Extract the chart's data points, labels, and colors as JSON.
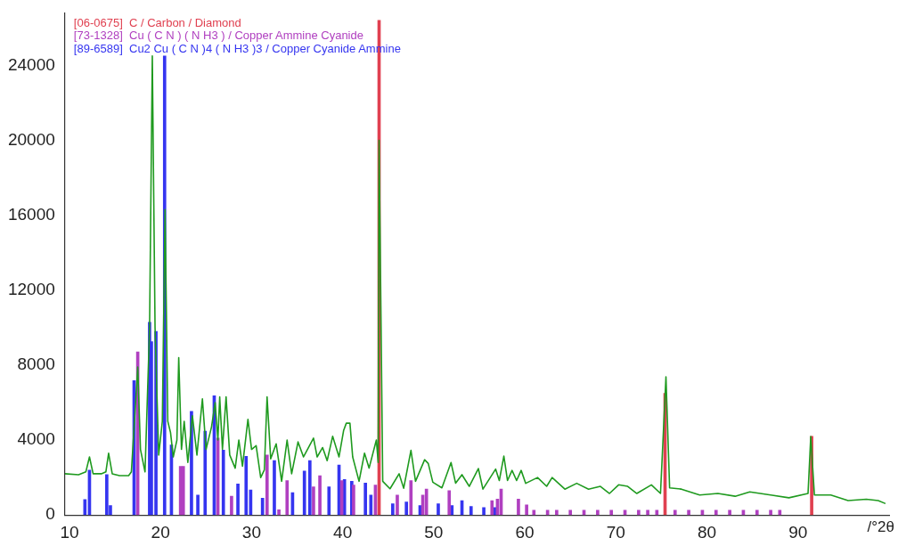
{
  "chart_data": {
    "type": "line",
    "xlabel": "/°2θ",
    "xlim": [
      9.5,
      100
    ],
    "ylim": [
      0,
      26800
    ],
    "xticks": [
      10,
      20,
      30,
      40,
      50,
      60,
      70,
      80,
      90
    ],
    "yticks": [
      0,
      4000,
      8000,
      12000,
      16000,
      20000,
      24000
    ],
    "legend": "top left",
    "marker": "none",
    "line_style": "solid",
    "series": [
      {
        "type": "bar",
        "name": "[06-0675]  C / Carbon / Diamond",
        "color": "#e04050",
        "x": [
          44.0,
          75.4,
          91.5
        ],
        "values": [
          26400,
          6500,
          4200
        ]
      },
      {
        "type": "bar",
        "name": "[73-1328]  Cu ( C N ) ( N H3 ) / Copper Ammine Cyanide",
        "color": "#b040c0",
        "x": [
          17.5,
          22.2,
          22.5,
          26.3,
          27.8,
          31.7,
          33.0,
          33.9,
          36.8,
          37.5,
          39.9,
          41.2,
          43.6,
          46.0,
          47.5,
          48.8,
          49.2,
          51.7,
          56.4,
          57.0,
          57.4,
          59.3,
          60.2,
          61.0,
          62.5,
          63.5,
          65.0,
          66.5,
          68.0,
          69.5,
          71.0,
          72.5,
          73.5,
          74.5,
          76.5,
          78.0,
          79.5,
          81.0,
          82.5,
          84.0,
          85.5,
          87.0,
          88.0
        ],
        "values": [
          8700,
          2600,
          2600,
          4100,
          1000,
          3200,
          280,
          1840,
          1500,
          2100,
          1840,
          1600,
          1600,
          1060,
          1840,
          1060,
          1380,
          1300,
          770,
          850,
          1380,
          850,
          540,
          250,
          250,
          250,
          250,
          250,
          250,
          250,
          250,
          250,
          250,
          250,
          250,
          250,
          250,
          250,
          250,
          250,
          250,
          250,
          250
        ]
      },
      {
        "type": "bar",
        "name": "[89-6589]  Cu2 Cu ( C N )4 ( N H3 )3 / Copper Cyanide Ammine",
        "color": "#3535f0",
        "x": [
          11.7,
          12.2,
          14.1,
          14.5,
          17.1,
          18.8,
          19.0,
          19.5,
          20.45,
          21.2,
          23.4,
          24.1,
          24.9,
          25.9,
          26.9,
          28.5,
          29.4,
          29.9,
          31.2,
          32.5,
          34.5,
          35.8,
          36.4,
          38.5,
          39.6,
          40.2,
          41.0,
          42.5,
          43.1,
          45.5,
          47.0,
          48.5,
          50.5,
          52.0,
          53.1,
          54.1,
          55.5,
          56.7
        ],
        "values": [
          830,
          2400,
          2160,
          500,
          7170,
          10280,
          9250,
          9800,
          24500,
          3740,
          5530,
          1060,
          4470,
          6360,
          3460,
          1660,
          3130,
          1340,
          900,
          2900,
          1200,
          2350,
          2900,
          1500,
          2670,
          1900,
          1800,
          1700,
          1060,
          600,
          700,
          500,
          600,
          500,
          770,
          460,
          400,
          400
        ]
      },
      {
        "color": "#1f9a1f",
        "x": [
          9.5,
          11.0,
          11.8,
          12.2,
          12.6,
          13.5,
          14.0,
          14.3,
          14.7,
          15.5,
          16.5,
          16.8,
          17.2,
          17.5,
          17.8,
          18.3,
          18.8,
          19.1,
          19.4,
          19.8,
          20.2,
          20.5,
          20.8,
          21.1,
          21.4,
          21.8,
          22.0,
          22.3,
          22.6,
          23.0,
          23.5,
          24.0,
          24.6,
          25.0,
          25.6,
          26.0,
          26.3,
          26.5,
          26.8,
          27.2,
          27.6,
          28.2,
          28.6,
          29.0,
          29.6,
          30.0,
          30.5,
          31.0,
          31.4,
          31.7,
          32.1,
          32.7,
          33.3,
          33.9,
          34.4,
          35.1,
          35.7,
          36.8,
          37.2,
          37.8,
          38.3,
          38.9,
          39.6,
          40.1,
          40.4,
          40.8,
          41.1,
          41.8,
          42.4,
          42.9,
          43.7,
          43.9,
          44.0,
          44.4,
          45.2,
          46.2,
          46.7,
          47.5,
          48.0,
          49.0,
          49.4,
          49.9,
          50.9,
          51.9,
          52.4,
          53.1,
          53.9,
          54.9,
          55.4,
          56.8,
          57.2,
          57.7,
          58.1,
          58.6,
          59.1,
          59.6,
          60.1,
          61.4,
          62.4,
          63.0,
          64.4,
          65.7,
          67.0,
          68.3,
          69.3,
          70.3,
          71.3,
          72.3,
          73.9,
          74.9,
          75.5,
          75.9,
          77.2,
          79.2,
          81.2,
          83.1,
          84.7,
          87.0,
          89.0,
          91.1,
          91.4,
          91.8,
          93.6,
          95.5,
          97.5,
          98.8,
          99.6
        ],
        "values": [
          2200,
          2150,
          2300,
          3100,
          2200,
          2200,
          2300,
          3300,
          2200,
          2100,
          2100,
          2300,
          5500,
          7900,
          3500,
          2300,
          10000,
          24500,
          10000,
          3200,
          5000,
          16300,
          5000,
          4400,
          3100,
          4000,
          8400,
          3500,
          5000,
          2800,
          5300,
          3200,
          6200,
          3500,
          4700,
          6000,
          4000,
          6300,
          3500,
          6300,
          3200,
          2500,
          4000,
          2600,
          5100,
          3500,
          3700,
          2000,
          2400,
          6300,
          3000,
          3800,
          1800,
          4000,
          2200,
          3900,
          3100,
          4100,
          3100,
          3600,
          2900,
          4200,
          3100,
          4500,
          4900,
          4900,
          3100,
          1800,
          3300,
          2500,
          4000,
          2800,
          20000,
          1800,
          1400,
          2200,
          1430,
          3450,
          1800,
          2950,
          2750,
          1750,
          1450,
          2800,
          1700,
          2150,
          1530,
          2480,
          1380,
          2450,
          1840,
          3140,
          1840,
          2380,
          1840,
          2380,
          1690,
          2000,
          1530,
          2000,
          1380,
          1690,
          1380,
          1530,
          1150,
          1610,
          1530,
          1150,
          1610,
          1150,
          7370,
          1450,
          1380,
          1070,
          1150,
          1000,
          1230,
          1070,
          920,
          1150,
          4190,
          1070,
          1070,
          770,
          840,
          770,
          610
        ]
      }
    ]
  }
}
